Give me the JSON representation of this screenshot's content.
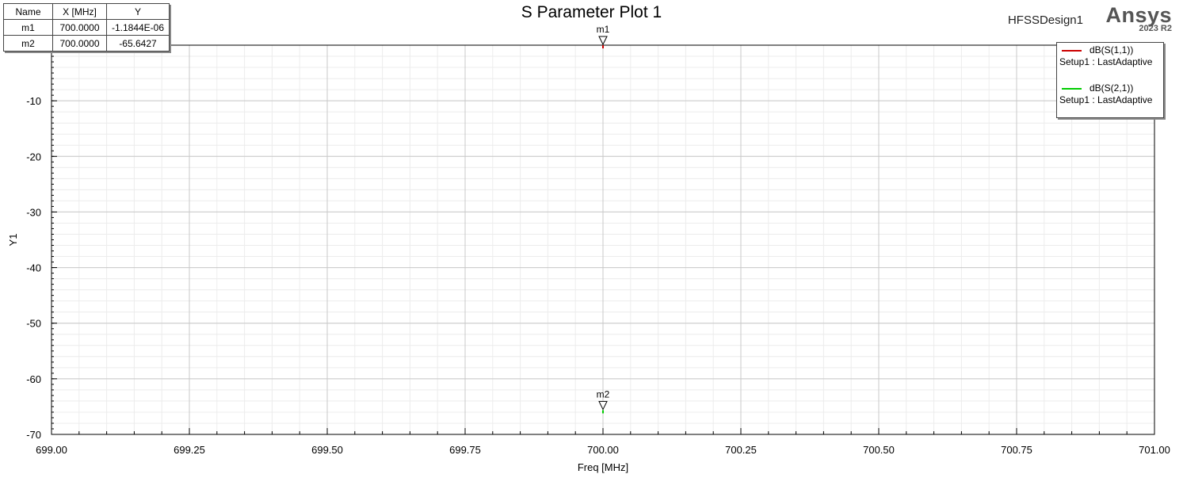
{
  "chart_data": {
    "type": "line",
    "title": "S Parameter Plot 1",
    "xlabel": "Freq [MHz]",
    "ylabel": "Y1",
    "xlim": [
      699.0,
      701.0
    ],
    "ylim": [
      -70,
      0
    ],
    "xticks": [
      "699.00",
      "699.25",
      "699.50",
      "699.75",
      "700.00",
      "700.25",
      "700.50",
      "700.75",
      "701.00"
    ],
    "yticks": [
      "-10",
      "-20",
      "-30",
      "-40",
      "-50",
      "-60",
      "-70"
    ],
    "grid": true,
    "legend_position": "top-right",
    "series": [
      {
        "name": "dB(S(1,1))",
        "setup": "Setup1 : LastAdaptive",
        "color": "#cc0000",
        "x": [
          700.0
        ],
        "y": [
          -1.1844e-06
        ]
      },
      {
        "name": "dB(S(2,1))",
        "setup": "Setup1 : LastAdaptive",
        "color": "#00cc00",
        "x": [
          700.0
        ],
        "y": [
          -65.6427
        ]
      }
    ],
    "markers": [
      {
        "name": "m1",
        "x": "700.0000",
        "y": "-1.1844E-06"
      },
      {
        "name": "m2",
        "x": "700.0000",
        "y": "-65.6427"
      }
    ]
  },
  "marker_table": {
    "headers": [
      "Name",
      "X [MHz]",
      "Y"
    ]
  },
  "brand": {
    "design_name": "HFSSDesign1",
    "logo": "Ansys",
    "version": "2023 R2"
  }
}
